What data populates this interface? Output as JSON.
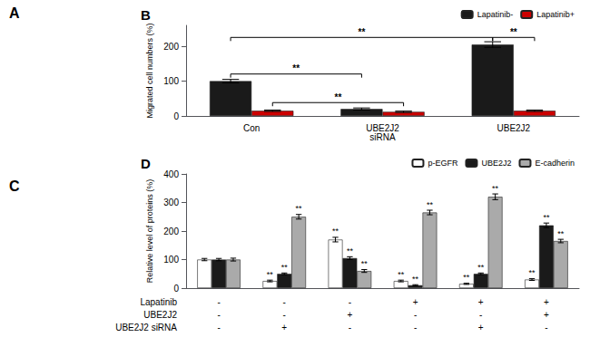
{
  "annotations": [
    "A",
    "C"
  ],
  "chart_data": [
    {
      "type": "bar",
      "title": "B",
      "categories": [
        "Con",
        "UBE2J2\nsiRNA",
        "UBE2J2"
      ],
      "ylabel": "Migrated cell numbers (%)",
      "series": [
        {
          "name": "Lapatinib-",
          "color": "#1a1a1a",
          "values": [
            100,
            20,
            205
          ],
          "errors": [
            5,
            3,
            8
          ]
        },
        {
          "name": "Lapatinib+",
          "color": "#cc0000",
          "values": [
            15,
            12,
            15
          ],
          "errors": [
            2,
            2,
            2
          ]
        }
      ],
      "ylim": [
        0,
        260
      ],
      "yticks": [
        0,
        100,
        200
      ],
      "grid": false,
      "legend": "upper right",
      "brackets": [
        {
          "from": {
            "category": "Con",
            "series": "Lapatinib-"
          },
          "to": {
            "category": "UBE2J2\nsiRNA",
            "series": "Lapatinib-"
          },
          "y": 110,
          "label": "**"
        },
        {
          "from": {
            "category": "Con",
            "series": "Lapatinib+"
          },
          "to": {
            "category": "UBE2J2\nsiRNA",
            "series": "Lapatinib+"
          },
          "y": 28,
          "label": "**"
        },
        {
          "from": {
            "category": "Con",
            "series": "Lapatinib-"
          },
          "to": {
            "category": "UBE2J2",
            "series": "Lapatinib-"
          },
          "y": 215,
          "label": "**"
        },
        {
          "from": {
            "category": "UBE2J2",
            "series": "Lapatinib-"
          },
          "to": {
            "category": "UBE2J2",
            "series": "Lapatinib+"
          },
          "y": 215,
          "label": "**"
        }
      ]
    },
    {
      "type": "bar",
      "title": "D",
      "categories": [
        null,
        null,
        null,
        null,
        null,
        null
      ],
      "condition_rows": [
        {
          "label": "Lapatinib",
          "values": [
            "-",
            "-",
            "-",
            "+",
            "+",
            "+"
          ]
        },
        {
          "label": "UBE2J2",
          "values": [
            "-",
            "-",
            "+",
            "-",
            "-",
            "+"
          ]
        },
        {
          "label": "UBE2J2 siRNA",
          "values": [
            "-",
            "+",
            "-",
            "-",
            "+",
            "-"
          ]
        }
      ],
      "ylabel": "Relative level of proteins (%)",
      "series": [
        {
          "name": "p-EGFR",
          "color": "#ffffff",
          "values": [
            100,
            25,
            170,
            25,
            15,
            30
          ],
          "errors": [
            4,
            3,
            8,
            3,
            2,
            3
          ],
          "annotations": [
            null,
            "**",
            "**",
            "**",
            "**",
            "**"
          ]
        },
        {
          "name": "UBE2J2",
          "color": "#1a1a1a",
          "values": [
            100,
            50,
            105,
            10,
            50,
            220
          ],
          "errors": [
            4,
            3,
            5,
            2,
            3,
            8
          ],
          "annotations": [
            null,
            "**",
            "**",
            "**",
            "**",
            "**"
          ]
        },
        {
          "name": "E-cadherin",
          "color": "#aaaaaa",
          "values": [
            100,
            250,
            60,
            265,
            320,
            165
          ],
          "errors": [
            5,
            8,
            5,
            8,
            10,
            6
          ],
          "annotations": [
            null,
            "**",
            "**",
            "**",
            "**",
            "**"
          ]
        }
      ],
      "ylim": [
        0,
        400
      ],
      "yticks": [
        0,
        100,
        200,
        300,
        400
      ],
      "grid": false,
      "legend": "upper right"
    }
  ]
}
